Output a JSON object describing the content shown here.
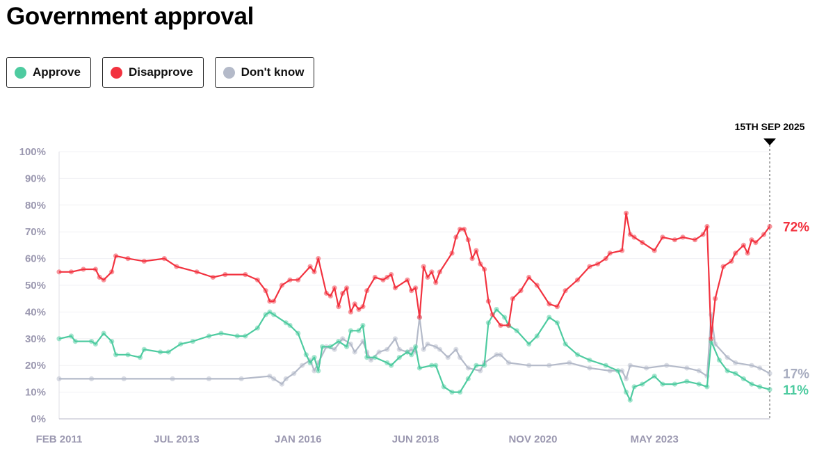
{
  "title": "Government approval",
  "legend": [
    {
      "label": "Approve",
      "color": "#4ecba0"
    },
    {
      "label": "Disapprove",
      "color": "#f2323f"
    },
    {
      "label": "Don't know",
      "color": "#b4bac9"
    }
  ],
  "chart_data": {
    "type": "line",
    "title": "Government approval",
    "ylim": [
      0,
      100
    ],
    "xlim": [
      "2011-02",
      "2025-09-15"
    ],
    "y_ticks": [
      "0%",
      "10%",
      "20%",
      "30%",
      "40%",
      "50%",
      "60%",
      "70%",
      "80%",
      "90%",
      "100%"
    ],
    "x_ticks": [
      {
        "date": "2011-02",
        "label": "FEB 2011"
      },
      {
        "date": "2013-07",
        "label": "JUL 2013"
      },
      {
        "date": "2016-01",
        "label": "JAN 2016"
      },
      {
        "date": "2018-06",
        "label": "JUN 2018"
      },
      {
        "date": "2020-11",
        "label": "NOV 2020"
      },
      {
        "date": "2023-05",
        "label": "MAY 2023"
      }
    ],
    "grid": true,
    "legend_placement": "top-left",
    "marker": {
      "date": "2025-09-15",
      "label": "15TH SEP 2025"
    },
    "series": [
      {
        "name": "Approve",
        "color": "#4ecba0",
        "end_label": "11%",
        "points": [
          [
            "2011-02",
            30
          ],
          [
            "2011-05",
            31
          ],
          [
            "2011-06",
            29
          ],
          [
            "2011-10",
            29
          ],
          [
            "2011-11",
            28
          ],
          [
            "2012-01",
            32
          ],
          [
            "2012-03",
            29
          ],
          [
            "2012-04",
            24
          ],
          [
            "2012-07",
            24
          ],
          [
            "2012-10",
            23
          ],
          [
            "2012-11",
            26
          ],
          [
            "2013-03",
            25
          ],
          [
            "2013-05",
            25
          ],
          [
            "2013-08",
            28
          ],
          [
            "2013-11",
            29
          ],
          [
            "2014-03",
            31
          ],
          [
            "2014-06",
            32
          ],
          [
            "2014-10",
            31
          ],
          [
            "2014-12",
            31
          ],
          [
            "2015-03",
            34
          ],
          [
            "2015-05",
            39
          ],
          [
            "2015-06",
            40
          ],
          [
            "2015-07",
            39
          ],
          [
            "2015-10",
            36
          ],
          [
            "2015-11",
            35
          ],
          [
            "2016-01",
            32
          ],
          [
            "2016-03",
            24
          ],
          [
            "2016-04",
            21
          ],
          [
            "2016-05",
            23
          ],
          [
            "2016-06",
            18
          ],
          [
            "2016-07",
            27
          ],
          [
            "2016-09",
            27
          ],
          [
            "2016-11",
            29
          ],
          [
            "2017-01",
            27
          ],
          [
            "2017-02",
            33
          ],
          [
            "2017-04",
            33
          ],
          [
            "2017-05",
            35
          ],
          [
            "2017-06",
            23
          ],
          [
            "2017-08",
            23
          ],
          [
            "2017-11",
            21
          ],
          [
            "2017-12",
            20
          ],
          [
            "2018-02",
            23
          ],
          [
            "2018-04",
            25
          ],
          [
            "2018-05",
            24
          ],
          [
            "2018-06",
            27
          ],
          [
            "2018-07",
            19
          ],
          [
            "2018-10",
            20
          ],
          [
            "2018-11",
            20
          ],
          [
            "2019-01",
            12
          ],
          [
            "2019-03",
            10
          ],
          [
            "2019-05",
            10
          ],
          [
            "2019-07",
            15
          ],
          [
            "2019-09",
            20
          ],
          [
            "2019-11",
            20
          ],
          [
            "2019-12",
            36
          ],
          [
            "2020-02",
            41
          ],
          [
            "2020-04",
            38
          ],
          [
            "2020-05",
            35
          ],
          [
            "2020-07",
            33
          ],
          [
            "2020-10",
            28
          ],
          [
            "2020-12",
            31
          ],
          [
            "2021-03",
            38
          ],
          [
            "2021-05",
            36
          ],
          [
            "2021-07",
            28
          ],
          [
            "2021-10",
            24
          ],
          [
            "2022-01",
            22
          ],
          [
            "2022-05",
            20
          ],
          [
            "2022-08",
            18
          ],
          [
            "2022-10",
            10
          ],
          [
            "2022-11",
            7
          ],
          [
            "2022-12",
            12
          ],
          [
            "2023-02",
            13
          ],
          [
            "2023-05",
            16
          ],
          [
            "2023-07",
            13
          ],
          [
            "2023-10",
            13
          ],
          [
            "2024-01",
            14
          ],
          [
            "2024-04",
            13
          ],
          [
            "2024-06",
            12
          ],
          [
            "2024-07",
            29
          ],
          [
            "2024-09",
            22
          ],
          [
            "2024-11",
            18
          ],
          [
            "2025-01",
            17
          ],
          [
            "2025-03",
            15
          ],
          [
            "2025-05",
            13
          ],
          [
            "2025-07",
            12
          ],
          [
            "2025-09-15",
            11
          ]
        ]
      },
      {
        "name": "Disapprove",
        "color": "#f2323f",
        "end_label": "72%",
        "points": [
          [
            "2011-02",
            55
          ],
          [
            "2011-05",
            55
          ],
          [
            "2011-08",
            56
          ],
          [
            "2011-11",
            56
          ],
          [
            "2011-12",
            53
          ],
          [
            "2012-01",
            52
          ],
          [
            "2012-03",
            55
          ],
          [
            "2012-04",
            61
          ],
          [
            "2012-07",
            60
          ],
          [
            "2012-11",
            59
          ],
          [
            "2013-04",
            60
          ],
          [
            "2013-07",
            57
          ],
          [
            "2013-12",
            55
          ],
          [
            "2014-04",
            53
          ],
          [
            "2014-07",
            54
          ],
          [
            "2014-12",
            54
          ],
          [
            "2015-03",
            52
          ],
          [
            "2015-05",
            48
          ],
          [
            "2015-06",
            44
          ],
          [
            "2015-07",
            44
          ],
          [
            "2015-09",
            50
          ],
          [
            "2015-11",
            52
          ],
          [
            "2016-01",
            52
          ],
          [
            "2016-04",
            57
          ],
          [
            "2016-05",
            55
          ],
          [
            "2016-06",
            60
          ],
          [
            "2016-08",
            47
          ],
          [
            "2016-09",
            46
          ],
          [
            "2016-10",
            49
          ],
          [
            "2016-11",
            42
          ],
          [
            "2016-12",
            47
          ],
          [
            "2017-01",
            49
          ],
          [
            "2017-02",
            40
          ],
          [
            "2017-03",
            43
          ],
          [
            "2017-04",
            41
          ],
          [
            "2017-05",
            42
          ],
          [
            "2017-06",
            48
          ],
          [
            "2017-08",
            53
          ],
          [
            "2017-10",
            52
          ],
          [
            "2017-11",
            53
          ],
          [
            "2017-12",
            54
          ],
          [
            "2018-01",
            49
          ],
          [
            "2018-04",
            52
          ],
          [
            "2018-05",
            48
          ],
          [
            "2018-06",
            49
          ],
          [
            "2018-07",
            38
          ],
          [
            "2018-08",
            57
          ],
          [
            "2018-09",
            53
          ],
          [
            "2018-10",
            55
          ],
          [
            "2018-11",
            51
          ],
          [
            "2018-12",
            55
          ],
          [
            "2019-03",
            62
          ],
          [
            "2019-04",
            68
          ],
          [
            "2019-05",
            71
          ],
          [
            "2019-06",
            71
          ],
          [
            "2019-07",
            67
          ],
          [
            "2019-08",
            60
          ],
          [
            "2019-09",
            63
          ],
          [
            "2019-10",
            58
          ],
          [
            "2019-11",
            56
          ],
          [
            "2019-12",
            44
          ],
          [
            "2020-01",
            39
          ],
          [
            "2020-03",
            35
          ],
          [
            "2020-05",
            35
          ],
          [
            "2020-06",
            45
          ],
          [
            "2020-08",
            48
          ],
          [
            "2020-10",
            53
          ],
          [
            "2020-12",
            50
          ],
          [
            "2021-03",
            43
          ],
          [
            "2021-05",
            42
          ],
          [
            "2021-07",
            48
          ],
          [
            "2021-10",
            52
          ],
          [
            "2022-01",
            57
          ],
          [
            "2022-03",
            58
          ],
          [
            "2022-05",
            60
          ],
          [
            "2022-06",
            62
          ],
          [
            "2022-09",
            63
          ],
          [
            "2022-10",
            77
          ],
          [
            "2022-11",
            69
          ],
          [
            "2022-12",
            68
          ],
          [
            "2023-02",
            66
          ],
          [
            "2023-05",
            63
          ],
          [
            "2023-07",
            68
          ],
          [
            "2023-10",
            67
          ],
          [
            "2023-12",
            68
          ],
          [
            "2024-03",
            67
          ],
          [
            "2024-05",
            69
          ],
          [
            "2024-06",
            72
          ],
          [
            "2024-07",
            30
          ],
          [
            "2024-08",
            45
          ],
          [
            "2024-10",
            57
          ],
          [
            "2024-12",
            59
          ],
          [
            "2025-01",
            62
          ],
          [
            "2025-03",
            65
          ],
          [
            "2025-04",
            62
          ],
          [
            "2025-05",
            67
          ],
          [
            "2025-06",
            66
          ],
          [
            "2025-08",
            69
          ],
          [
            "2025-09-15",
            72
          ]
        ]
      },
      {
        "name": "Don't know",
        "color": "#b4bac9",
        "end_label": "17%",
        "points": [
          [
            "2011-02",
            15
          ],
          [
            "2011-10",
            15
          ],
          [
            "2012-06",
            15
          ],
          [
            "2013-06",
            15
          ],
          [
            "2014-03",
            15
          ],
          [
            "2014-11",
            15
          ],
          [
            "2015-06",
            16
          ],
          [
            "2015-07",
            15
          ],
          [
            "2015-09",
            13
          ],
          [
            "2015-10",
            15
          ],
          [
            "2015-12",
            17
          ],
          [
            "2016-02",
            20
          ],
          [
            "2016-04",
            22
          ],
          [
            "2016-05",
            18
          ],
          [
            "2016-06",
            21
          ],
          [
            "2016-08",
            27
          ],
          [
            "2016-10",
            26
          ],
          [
            "2016-12",
            30
          ],
          [
            "2017-02",
            28
          ],
          [
            "2017-03",
            25
          ],
          [
            "2017-05",
            29
          ],
          [
            "2017-06",
            25
          ],
          [
            "2017-07",
            22
          ],
          [
            "2017-09",
            25
          ],
          [
            "2017-11",
            26
          ],
          [
            "2018-01",
            30
          ],
          [
            "2018-02",
            26
          ],
          [
            "2018-04",
            25
          ],
          [
            "2018-05",
            26
          ],
          [
            "2018-06",
            25
          ],
          [
            "2018-07",
            38
          ],
          [
            "2018-08",
            26
          ],
          [
            "2018-09",
            28
          ],
          [
            "2018-11",
            27
          ],
          [
            "2018-12",
            26
          ],
          [
            "2019-02",
            23
          ],
          [
            "2019-04",
            26
          ],
          [
            "2019-05",
            23
          ],
          [
            "2019-07",
            19
          ],
          [
            "2019-10",
            18
          ],
          [
            "2019-11",
            21
          ],
          [
            "2020-02",
            24
          ],
          [
            "2020-03",
            24
          ],
          [
            "2020-05",
            21
          ],
          [
            "2020-10",
            20
          ],
          [
            "2021-03",
            20
          ],
          [
            "2021-08",
            21
          ],
          [
            "2022-01",
            19
          ],
          [
            "2022-06",
            18
          ],
          [
            "2022-09",
            18
          ],
          [
            "2022-10",
            15
          ],
          [
            "2022-11",
            20
          ],
          [
            "2023-03",
            19
          ],
          [
            "2023-08",
            20
          ],
          [
            "2024-01",
            19
          ],
          [
            "2024-04",
            18
          ],
          [
            "2024-06",
            16
          ],
          [
            "2024-07",
            39
          ],
          [
            "2024-08",
            28
          ],
          [
            "2024-11",
            23
          ],
          [
            "2025-01",
            21
          ],
          [
            "2025-05",
            20
          ],
          [
            "2025-07",
            19
          ],
          [
            "2025-09-15",
            17
          ]
        ]
      }
    ]
  }
}
